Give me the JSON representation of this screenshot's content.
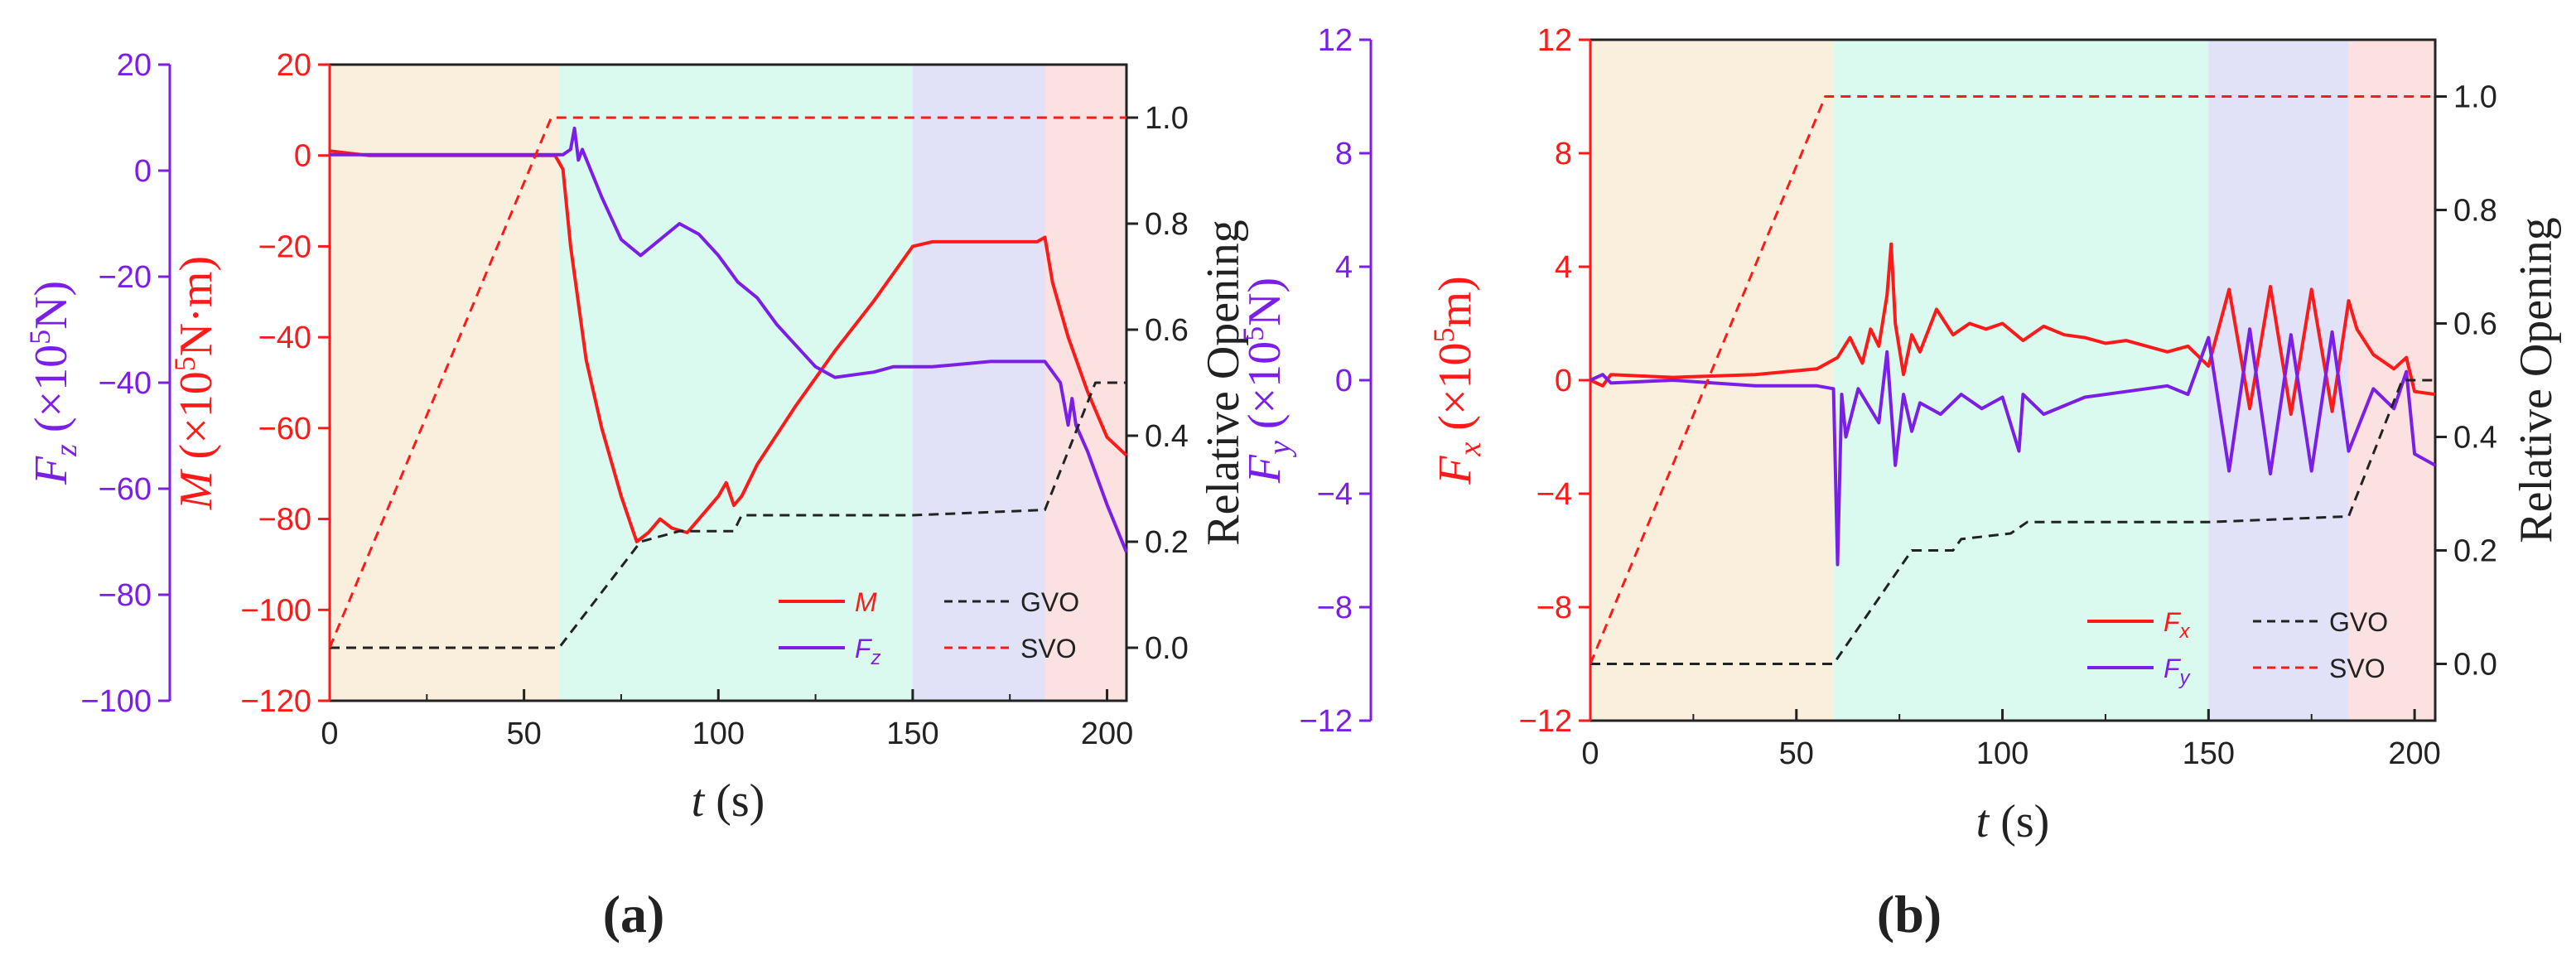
{
  "colors": {
    "red": "#ff1a1a",
    "purple": "#7b1fe8",
    "black": "#222222",
    "band_start": "#f8ecd6",
    "band_open": "#d5f9ec",
    "band_steady": "#dcdcf7",
    "band_close": "#fbdcdc"
  },
  "chart_data": [
    {
      "type": "line",
      "panel_label": "(a)",
      "xlabel_italic": "t",
      "xlabel_unit": " (s)",
      "xlim": [
        0,
        205
      ],
      "x_ticks": [
        "0",
        "50",
        "100",
        "150",
        "200"
      ],
      "left_axis_outer": {
        "label_sym": "F",
        "label_sub": "z",
        "label_rest": " (×10",
        "label_sup": "5",
        "label_end": "N)",
        "ylim": [
          -100,
          20
        ],
        "ticks": [
          "20",
          "0",
          "−20",
          "−40",
          "−60",
          "−80",
          "−100"
        ]
      },
      "left_axis_inner": {
        "label_sym": "M",
        "label_rest": " (×10",
        "label_sup": "5",
        "label_end": "N·m)",
        "ylim": [
          -120,
          20
        ],
        "ticks": [
          "20",
          "0",
          "−20",
          "−40",
          "−60",
          "−80",
          "−100",
          "−120"
        ]
      },
      "right_axis": {
        "label": "Relative Opening",
        "ylim": [
          -0.1,
          1.1
        ],
        "ticks": [
          "0.0",
          "0.2",
          "0.4",
          "0.6",
          "0.8",
          "1.0"
        ]
      },
      "phases": [
        [
          0,
          59
        ],
        [
          59,
          150
        ],
        [
          150,
          184
        ],
        [
          184,
          205
        ]
      ],
      "series": [
        {
          "name": "M",
          "axis": "left_inner",
          "style": "solid",
          "x": [
            0,
            10,
            30,
            50,
            58,
            60,
            62,
            66,
            70,
            75,
            79,
            82,
            85,
            88,
            92,
            96,
            100,
            102,
            104,
            106,
            110,
            120,
            130,
            140,
            150,
            155,
            170,
            182,
            184,
            186,
            190,
            195,
            200,
            205
          ],
          "y": [
            1,
            0,
            0,
            0,
            0,
            -3,
            -20,
            -45,
            -60,
            -75,
            -85,
            -83,
            -80,
            -82,
            -83,
            -79,
            -75,
            -72,
            -77,
            -75,
            -68,
            -55,
            -43,
            -32,
            -20,
            -19,
            -19,
            -19,
            -18,
            -28,
            -40,
            -52,
            -62,
            -66
          ]
        },
        {
          "name": "F_z",
          "axis": "left_outer",
          "style": "solid",
          "x": [
            0,
            30,
            55,
            60,
            62,
            63,
            64,
            65,
            70,
            75,
            80,
            85,
            90,
            95,
            100,
            105,
            110,
            115,
            120,
            125,
            130,
            140,
            145,
            150,
            155,
            170,
            182,
            184,
            188,
            190,
            191,
            192,
            195,
            200,
            205
          ],
          "y": [
            3,
            3,
            3,
            3,
            4,
            8,
            2,
            4,
            -5,
            -13,
            -16,
            -13,
            -10,
            -12,
            -16,
            -21,
            -24,
            -29,
            -33,
            -37,
            -39,
            -38,
            -37,
            -37,
            -37,
            -36,
            -36,
            -36,
            -40,
            -48,
            -43,
            -48,
            -53,
            -63,
            -72
          ]
        },
        {
          "name": "GVO",
          "axis": "right",
          "style": "dashed",
          "x": [
            0,
            59,
            80,
            90,
            92,
            104,
            106,
            150,
            184,
            197,
            205
          ],
          "y": [
            0.0,
            0.0,
            0.2,
            0.22,
            0.22,
            0.22,
            0.25,
            0.25,
            0.26,
            0.5,
            0.5
          ]
        },
        {
          "name": "SVO",
          "axis": "right",
          "style": "dashed",
          "x": [
            0,
            57,
            205
          ],
          "y": [
            0.0,
            1.0,
            1.0
          ]
        }
      ],
      "legend": [
        {
          "name_sym": "M",
          "name_sub": ""
        },
        {
          "name_sym": "GVO",
          "name_sub": ""
        },
        {
          "name_sym": "F",
          "name_sub": "z"
        },
        {
          "name_sym": "SVO",
          "name_sub": ""
        }
      ]
    },
    {
      "type": "line",
      "panel_label": "(b)",
      "xlabel_italic": "t",
      "xlabel_unit": " (s)",
      "xlim": [
        0,
        205
      ],
      "x_ticks": [
        "0",
        "50",
        "100",
        "150",
        "200"
      ],
      "left_axis_outer": {
        "label_sym": "F",
        "label_sub": "y",
        "label_rest": " (×10",
        "label_sup": "5",
        "label_end": "N)",
        "ylim": [
          -12,
          12
        ],
        "ticks": [
          "12",
          "8",
          "4",
          "0",
          "−4",
          "−8",
          "−12"
        ]
      },
      "left_axis_inner": {
        "label_sym": "F",
        "label_sub": "x",
        "label_rest": " (×10",
        "label_sup": "5",
        "label_end": "m)",
        "ylim": [
          -12,
          12
        ],
        "ticks": [
          "12",
          "8",
          "4",
          "0",
          "−4",
          "−8",
          "−12"
        ]
      },
      "right_axis": {
        "label": "Relative Opening",
        "ylim": [
          -0.1,
          1.1
        ],
        "ticks": [
          "0.0",
          "0.2",
          "0.4",
          "0.6",
          "0.8",
          "1.0"
        ]
      },
      "phases": [
        [
          0,
          59
        ],
        [
          59,
          150
        ],
        [
          150,
          184
        ],
        [
          184,
          205
        ]
      ],
      "series": [
        {
          "name": "F_x",
          "axis": "left_inner",
          "style": "solid",
          "x": [
            0,
            3,
            5,
            20,
            40,
            55,
            60,
            63,
            66,
            68,
            70,
            72,
            73,
            74,
            76,
            78,
            80,
            84,
            88,
            92,
            96,
            100,
            105,
            110,
            115,
            120,
            125,
            130,
            135,
            140,
            145,
            150,
            155,
            160,
            165,
            170,
            175,
            180,
            184,
            186,
            190,
            195,
            198,
            200,
            205
          ],
          "y": [
            0,
            -0.2,
            0.2,
            0.1,
            0.2,
            0.4,
            0.8,
            1.5,
            0.6,
            1.8,
            1.2,
            3.0,
            4.8,
            2.0,
            0.2,
            1.6,
            1.0,
            2.5,
            1.6,
            2.0,
            1.8,
            2.0,
            1.4,
            1.9,
            1.6,
            1.5,
            1.3,
            1.4,
            1.2,
            1.0,
            1.2,
            0.5,
            3.2,
            -1.0,
            3.3,
            -1.2,
            3.2,
            -1.1,
            2.8,
            1.8,
            0.9,
            0.4,
            0.8,
            -0.4,
            -0.5
          ]
        },
        {
          "name": "F_y",
          "axis": "left_outer",
          "style": "solid",
          "x": [
            0,
            3,
            5,
            20,
            40,
            55,
            59,
            60,
            61,
            62,
            65,
            70,
            72,
            74,
            76,
            78,
            80,
            85,
            90,
            95,
            100,
            104,
            105,
            110,
            120,
            130,
            140,
            145,
            150,
            155,
            160,
            165,
            170,
            175,
            180,
            184,
            190,
            195,
            198,
            200,
            205
          ],
          "y": [
            0,
            0.2,
            -0.1,
            0.0,
            -0.2,
            -0.2,
            -0.3,
            -6.5,
            -0.5,
            -2.0,
            -0.3,
            -1.5,
            1.0,
            -3.0,
            -0.5,
            -1.8,
            -0.8,
            -1.2,
            -0.5,
            -1.0,
            -0.6,
            -2.5,
            -0.5,
            -1.2,
            -0.6,
            -0.4,
            -0.2,
            -0.5,
            1.5,
            -3.2,
            1.8,
            -3.3,
            1.6,
            -3.2,
            1.7,
            -2.5,
            -0.3,
            -1.0,
            0.3,
            -2.6,
            -3.0
          ]
        },
        {
          "name": "GVO",
          "axis": "right",
          "style": "dashed",
          "x": [
            0,
            59,
            78,
            88,
            90,
            102,
            106,
            150,
            184,
            197,
            205
          ],
          "y": [
            0.0,
            0.0,
            0.2,
            0.2,
            0.22,
            0.23,
            0.25,
            0.25,
            0.26,
            0.5,
            0.5
          ]
        },
        {
          "name": "SVO",
          "axis": "right",
          "style": "dashed",
          "x": [
            0,
            57,
            205
          ],
          "y": [
            0.0,
            1.0,
            1.0
          ]
        }
      ],
      "legend": [
        {
          "name_sym": "F",
          "name_sub": "x"
        },
        {
          "name_sym": "GVO",
          "name_sub": ""
        },
        {
          "name_sym": "F",
          "name_sub": "y"
        },
        {
          "name_sym": "SVO",
          "name_sub": ""
        }
      ]
    }
  ]
}
